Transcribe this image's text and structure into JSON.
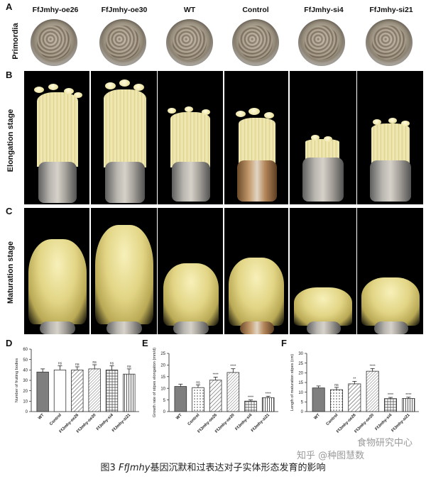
{
  "panels": {
    "A": "A",
    "B": "B",
    "C": "C",
    "D": "D",
    "E": "E",
    "F": "F"
  },
  "column_labels": [
    "FfJmhy-oe26",
    "FfJmhy-oe30",
    "WT",
    "Control",
    "FfJmhy-si4",
    "FfJmhy-si21"
  ],
  "row_labels": {
    "primordia": "Primordia",
    "elongation": "Elongation stage",
    "maturation": "Maturation stage"
  },
  "caption": {
    "prefix": "图3 ",
    "gene": "FfJmhy",
    "suffix": "基因沉默和过表达对子实体形态发育的影响"
  },
  "watermark": {
    "line1": "食物研究中心",
    "line2": "知乎 @种图慧数"
  },
  "colors": {
    "dark_bar": "#7f7f7f",
    "white_bar": "#ffffff",
    "hatch": "#555555"
  },
  "chart_data": [
    {
      "panel": "D",
      "type": "bar",
      "categories": [
        "WT",
        "Control",
        "FfJmhy-oe26",
        "FfJmhy-oe30",
        "FfJmhy-si4",
        "FfJmhy-si21"
      ],
      "values": [
        38,
        40,
        40,
        41,
        40,
        36
      ],
      "errors": [
        3,
        4,
        3,
        4,
        4,
        5
      ],
      "annotations": [
        "",
        "ns",
        "ns",
        "ns",
        "ns",
        "ns"
      ],
      "ylabel": "Number of fruiting bodies",
      "ylim": [
        0,
        60
      ],
      "yticks": [
        0,
        10,
        20,
        30,
        40,
        50,
        60
      ],
      "legend": "none",
      "grid": false
    },
    {
      "panel": "E",
      "type": "bar",
      "categories": [
        "WT",
        "Control",
        "FfJmhy-oe26",
        "FfJmhy-oe30",
        "FfJmhy-si4",
        "FfJmhy-si21"
      ],
      "values": [
        10.8,
        10.3,
        13.5,
        16.8,
        4.5,
        6.0
      ],
      "errors": [
        1.0,
        1.2,
        1.3,
        1.6,
        0.5,
        0.6
      ],
      "annotations": [
        "",
        "ns",
        "****",
        "****",
        "****",
        "****"
      ],
      "ylabel": "Growth rate of stipes elongation (mm/d)",
      "ylim": [
        0,
        25
      ],
      "yticks": [
        0,
        5,
        10,
        15,
        20,
        25
      ],
      "legend": "none",
      "grid": false
    },
    {
      "panel": "F",
      "type": "bar",
      "categories": [
        "WT",
        "Control",
        "FfJmhy-oe26",
        "FfJmhy-oe30",
        "FfJmhy-si4",
        "FfJmhy-si21"
      ],
      "values": [
        12.2,
        11.3,
        14.3,
        20.8,
        6.7,
        6.8
      ],
      "errors": [
        1.0,
        1.2,
        1.3,
        1.4,
        0.6,
        0.6
      ],
      "annotations": [
        "",
        "ns",
        "**",
        "****",
        "****",
        "****"
      ],
      "ylabel": "Length of maturation stipes (cm)",
      "ylim": [
        0,
        30
      ],
      "yticks": [
        0,
        5,
        10,
        15,
        20,
        25,
        30
      ],
      "legend": "none",
      "grid": false
    }
  ]
}
